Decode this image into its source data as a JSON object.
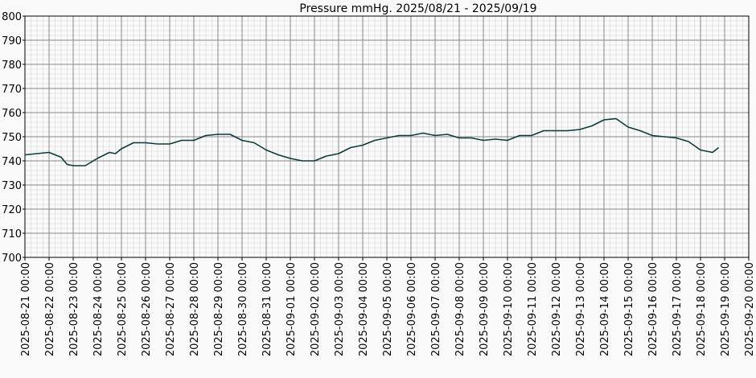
{
  "chart_data": {
    "type": "line",
    "title": "Pressure mmHg. 2025/08/21 - 2025/09/19",
    "ylim": [
      700,
      800
    ],
    "y_ticks": [
      "700",
      "710",
      "720",
      "730",
      "740",
      "750",
      "760",
      "770",
      "780",
      "790",
      "800"
    ],
    "x_start": "2025-08-21 00:00",
    "x_end": "2025-09-20 00:00",
    "x_ticks": [
      "2025-08-21 00:00",
      "2025-08-22 00:00",
      "2025-08-23 00:00",
      "2025-08-24 00:00",
      "2025-08-25 00:00",
      "2025-08-26 00:00",
      "2025-08-27 00:00",
      "2025-08-28 00:00",
      "2025-08-29 00:00",
      "2025-08-30 00:00",
      "2025-08-31 00:00",
      "2025-09-01 00:00",
      "2025-09-02 00:00",
      "2025-09-03 00:00",
      "2025-09-04 00:00",
      "2025-09-05 00:00",
      "2025-09-06 00:00",
      "2025-09-07 00:00",
      "2025-09-08 00:00",
      "2025-09-09 00:00",
      "2025-09-10 00:00",
      "2025-09-11 00:00",
      "2025-09-12 00:00",
      "2025-09-13 00:00",
      "2025-09-14 00:00",
      "2025-09-15 00:00",
      "2025-09-16 00:00",
      "2025-09-17 00:00",
      "2025-09-18 00:00",
      "2025-09-19 00:00",
      "2025-09-20 00:00"
    ],
    "grid": true,
    "colors": {
      "line": "#0b3b3b",
      "major_grid": "#888888",
      "minor_grid": "#d6d6d6",
      "axis": "#000000"
    },
    "series": [
      {
        "x": [
          "2025-08-21 00:00",
          "2025-08-21 12:00",
          "2025-08-22 00:00",
          "2025-08-22 12:00",
          "2025-08-22 18:00",
          "2025-08-23 00:00",
          "2025-08-23 12:00",
          "2025-08-24 00:00",
          "2025-08-24 12:00",
          "2025-08-24 18:00",
          "2025-08-25 00:00",
          "2025-08-25 12:00",
          "2025-08-26 00:00",
          "2025-08-26 12:00",
          "2025-08-27 00:00",
          "2025-08-27 12:00",
          "2025-08-28 00:00",
          "2025-08-28 12:00",
          "2025-08-29 00:00",
          "2025-08-29 12:00",
          "2025-08-30 00:00",
          "2025-08-30 12:00",
          "2025-08-31 00:00",
          "2025-08-31 12:00",
          "2025-09-01 00:00",
          "2025-09-01 12:00",
          "2025-09-02 00:00",
          "2025-09-02 12:00",
          "2025-09-03 00:00",
          "2025-09-03 12:00",
          "2025-09-04 00:00",
          "2025-09-04 12:00",
          "2025-09-05 00:00",
          "2025-09-05 12:00",
          "2025-09-06 00:00",
          "2025-09-06 12:00",
          "2025-09-07 00:00",
          "2025-09-07 12:00",
          "2025-09-08 00:00",
          "2025-09-08 12:00",
          "2025-09-09 00:00",
          "2025-09-09 12:00",
          "2025-09-10 00:00",
          "2025-09-10 12:00",
          "2025-09-11 00:00",
          "2025-09-11 12:00",
          "2025-09-12 00:00",
          "2025-09-12 12:00",
          "2025-09-13 00:00",
          "2025-09-13 12:00",
          "2025-09-14 00:00",
          "2025-09-14 12:00",
          "2025-09-15 00:00",
          "2025-09-15 12:00",
          "2025-09-16 00:00",
          "2025-09-16 12:00",
          "2025-09-17 00:00",
          "2025-09-17 12:00",
          "2025-09-18 00:00",
          "2025-09-18 12:00",
          "2025-09-18 18:00"
        ],
        "y": [
          742.5,
          743,
          743.5,
          741.5,
          738.5,
          738,
          738,
          741,
          743.5,
          743,
          745,
          747.5,
          747.5,
          747,
          747,
          748.5,
          748.5,
          750.5,
          751,
          751,
          748.5,
          747.5,
          744.5,
          742.5,
          741,
          740,
          740,
          742,
          743,
          745.5,
          746.5,
          748.5,
          749.5,
          750.5,
          750.5,
          751.5,
          750.5,
          751,
          749.5,
          749.5,
          748.5,
          749,
          748.5,
          750.5,
          750.5,
          752.5,
          752.5,
          752.5,
          753,
          754.5,
          757,
          757.5,
          754,
          752.5,
          750.5,
          750,
          749.5,
          748,
          744.5,
          743.5,
          745.5
        ]
      }
    ]
  }
}
